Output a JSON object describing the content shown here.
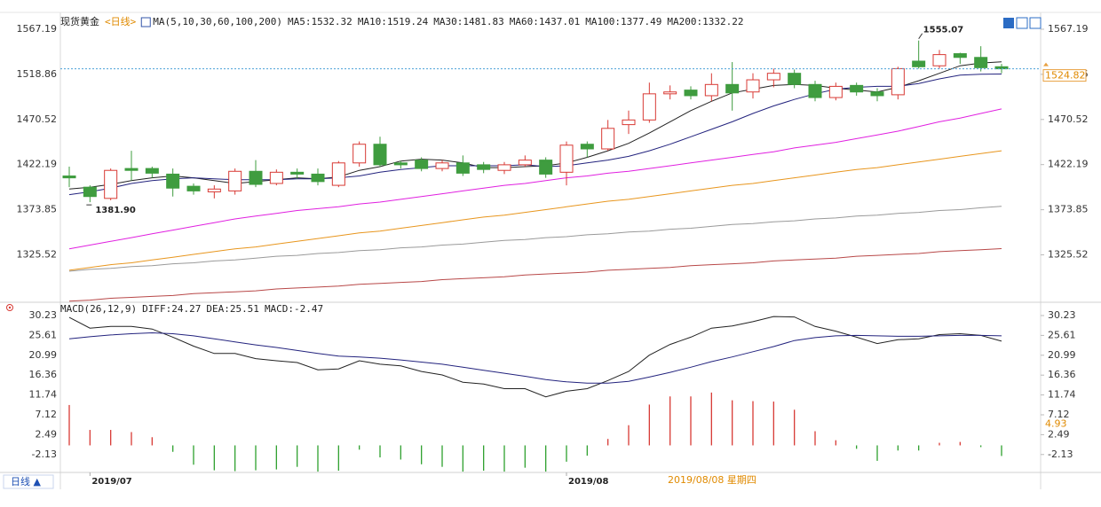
{
  "header": {
    "title": "现货黄金",
    "period": "<日线>",
    "ma_params": "MA(5,10,30,60,100,200)"
  },
  "chart_data": [
    {
      "type": "candlestick",
      "categories": [
        null,
        "2019/07",
        null,
        null,
        null,
        null,
        null,
        null,
        null,
        null,
        null,
        null,
        null,
        null,
        null,
        null,
        null,
        null,
        null,
        null,
        null,
        null,
        null,
        null,
        "2019/08",
        null,
        null,
        null,
        null,
        null,
        null,
        null,
        null,
        null,
        null,
        null,
        null,
        null,
        null,
        null,
        null,
        null,
        null,
        null,
        null,
        null
      ],
      "open": [
        1410,
        1398,
        1386,
        1418,
        1418,
        1412,
        1399,
        1393,
        1394,
        1415,
        1402,
        1414,
        1412,
        1400,
        1424,
        1444,
        1424,
        1427,
        1418,
        1424,
        1422,
        1416,
        1422,
        1427,
        1414,
        1444,
        1439,
        1465,
        1470,
        1498,
        1502,
        1496,
        1508,
        1500,
        1513,
        1520,
        1508,
        1494,
        1507,
        1500,
        1497,
        1533,
        1528,
        1541,
        1537,
        1527
      ],
      "high": [
        1420,
        1400,
        1418,
        1437,
        1420,
        1418,
        1402,
        1400,
        1418,
        1427,
        1417,
        1418,
        1418,
        1426,
        1447,
        1452,
        1426,
        1430,
        1427,
        1432,
        1425,
        1425,
        1432,
        1430,
        1447,
        1447,
        1470,
        1480,
        1510,
        1507,
        1506,
        1520,
        1532,
        1520,
        1525,
        1524,
        1512,
        1510,
        1510,
        1504,
        1527,
        1555.07,
        1545,
        1542,
        1549,
        1530
      ],
      "low": [
        1398,
        1381.9,
        1384,
        1405,
        1408,
        1388,
        1390,
        1386,
        1390,
        1398,
        1400,
        1407,
        1400,
        1398,
        1420,
        1420,
        1418,
        1415,
        1415,
        1410,
        1413,
        1412,
        1420,
        1408,
        1400,
        1430,
        1437,
        1455,
        1467,
        1492,
        1492,
        1490,
        1480,
        1493,
        1505,
        1504,
        1490,
        1491,
        1496,
        1490,
        1492,
        1525,
        1525,
        1530,
        1522,
        1520
      ],
      "close": [
        1408,
        1388,
        1416,
        1416,
        1413,
        1397,
        1394,
        1396,
        1415,
        1401,
        1414,
        1412,
        1404,
        1424,
        1444,
        1422,
        1422,
        1418,
        1424,
        1413,
        1417,
        1422,
        1427,
        1412,
        1443,
        1439,
        1461,
        1470,
        1498,
        1500,
        1496,
        1508,
        1499,
        1513,
        1520,
        1508,
        1494,
        1506,
        1500,
        1496,
        1525,
        1527,
        1540,
        1537,
        1526,
        1524.82
      ],
      "up_color": "#d83a34",
      "down_color": "#3f9c3f",
      "series": [
        {
          "label": "MA5:1532.32",
          "color": "#222222",
          "values": [
            1396,
            1398,
            1401,
            1405,
            1408,
            1410,
            1408,
            1405,
            1402,
            1404,
            1406,
            1408,
            1407,
            1409,
            1416,
            1420,
            1426,
            1428,
            1427,
            1424,
            1419,
            1419,
            1420,
            1421,
            1424,
            1430,
            1437,
            1445,
            1456,
            1468,
            1480,
            1490,
            1499,
            1503,
            1507,
            1508,
            1507,
            1504,
            1502,
            1500,
            1505,
            1512,
            1520,
            1528,
            1531,
            1532.32
          ]
        },
        {
          "label": "MA10:1519.24",
          "color": "#23237e",
          "values": [
            1390,
            1393,
            1397,
            1402,
            1405,
            1407,
            1408,
            1407,
            1406,
            1406,
            1406,
            1407,
            1407,
            1408,
            1410,
            1414,
            1417,
            1419,
            1421,
            1421,
            1421,
            1421,
            1422,
            1420,
            1421,
            1424,
            1427,
            1431,
            1437,
            1444,
            1452,
            1460,
            1468,
            1477,
            1485,
            1492,
            1498,
            1503,
            1505,
            1506,
            1506,
            1509,
            1514,
            1518,
            1519,
            1519.24
          ]
        },
        {
          "label": "MA30:1481.83",
          "color": "#e020e0",
          "values": [
            1332,
            1336,
            1340,
            1344,
            1348,
            1352,
            1356,
            1360,
            1364,
            1367,
            1370,
            1373,
            1375,
            1377,
            1380,
            1382,
            1385,
            1388,
            1391,
            1394,
            1397,
            1400,
            1402,
            1405,
            1408,
            1410,
            1413,
            1415,
            1418,
            1421,
            1424,
            1427,
            1430,
            1433,
            1436,
            1440,
            1443,
            1446,
            1450,
            1454,
            1458,
            1463,
            1468,
            1472,
            1477,
            1481.83
          ]
        },
        {
          "label": "MA60:1437.01",
          "color": "#e8961e",
          "values": [
            1309,
            1312,
            1315,
            1317,
            1320,
            1323,
            1326,
            1329,
            1332,
            1334,
            1337,
            1340,
            1343,
            1346,
            1349,
            1351,
            1354,
            1357,
            1360,
            1363,
            1366,
            1368,
            1371,
            1374,
            1377,
            1380,
            1383,
            1385,
            1388,
            1391,
            1394,
            1397,
            1400,
            1402,
            1405,
            1408,
            1411,
            1414,
            1417,
            1419,
            1422,
            1425,
            1428,
            1431,
            1434,
            1437.01
          ]
        },
        {
          "label": "MA100:1377.49",
          "color": "#9a9a9a",
          "values": [
            1308,
            1310,
            1311,
            1313,
            1314,
            1316,
            1317,
            1319,
            1320,
            1322,
            1324,
            1325,
            1327,
            1328,
            1330,
            1331,
            1333,
            1334,
            1336,
            1337,
            1339,
            1341,
            1342,
            1344,
            1345,
            1347,
            1348,
            1350,
            1351,
            1353,
            1354,
            1356,
            1358,
            1359,
            1361,
            1362,
            1364,
            1365,
            1367,
            1368,
            1370,
            1371,
            1373,
            1374,
            1376,
            1377.49
          ]
        },
        {
          "label": "MA200:1332.22",
          "color": "#b84848",
          "values": [
            1276,
            1277,
            1279,
            1280,
            1281,
            1282,
            1284,
            1285,
            1286,
            1287,
            1289,
            1290,
            1291,
            1292,
            1294,
            1295,
            1296,
            1297,
            1299,
            1300,
            1301,
            1302,
            1304,
            1305,
            1306,
            1307,
            1309,
            1310,
            1311,
            1312,
            1314,
            1315,
            1316,
            1317,
            1319,
            1320,
            1321,
            1322,
            1324,
            1325,
            1326,
            1327,
            1329,
            1330,
            1331,
            1332.22
          ]
        }
      ],
      "annotations": [
        {
          "value": 1381.9,
          "label": "1381.90",
          "color": "#3a9a3a"
        },
        {
          "value": 1555.07,
          "label": "1555.07",
          "color": "#d83a34"
        }
      ],
      "last_price": 1524.82,
      "ylim": [
        1275.7,
        1581.4
      ],
      "yticks": [
        1567.19,
        1518.86,
        1470.52,
        1422.19,
        1373.85,
        1325.52
      ],
      "grid": false
    },
    {
      "type": "macd",
      "title": "MACD(26,12,9)",
      "histogram_label": "MACD:-2.47",
      "histogram_label_color": "#e020e0",
      "values": [
        9.4,
        3.6,
        3.6,
        3.1,
        1.9,
        -1.5,
        -4.5,
        -5.8,
        -6.0,
        -5.8,
        -5.6,
        -5.0,
        -6.1,
        -5.9,
        -1.0,
        -2.8,
        -3.3,
        -4.4,
        -5.0,
        -6.1,
        -5.9,
        -6.1,
        -5.2,
        -6.1,
        -3.8,
        -2.4,
        1.5,
        4.7,
        9.5,
        11.4,
        11.4,
        12.3,
        10.5,
        10.3,
        10.2,
        8.3,
        3.3,
        1.2,
        -0.8,
        -3.6,
        -1.2,
        -1.2,
        0.6,
        0.8,
        -0.4,
        -2.47
      ],
      "up_color": "#d83a34",
      "down_color": "#2ea02e",
      "series": [
        {
          "label": "DIFF:24.27",
          "color": "#222222",
          "values": [
            29.8,
            27.3,
            27.7,
            27.7,
            27.1,
            25.2,
            23.1,
            21.4,
            21.4,
            20.2,
            19.7,
            19.3,
            17.6,
            17.8,
            19.7,
            18.9,
            18.5,
            17.2,
            16.4,
            14.7,
            14.3,
            13.2,
            13.2,
            11.3,
            12.6,
            13.2,
            15.1,
            17.2,
            21.0,
            23.5,
            25.2,
            27.3,
            27.8,
            28.8,
            30.0,
            29.9,
            27.7,
            26.6,
            25.2,
            23.7,
            24.6,
            24.8,
            25.8,
            26.0,
            25.6,
            24.27
          ]
        },
        {
          "label": "DEA:25.51",
          "color": "#23237e",
          "values": [
            24.8,
            25.3,
            25.7,
            26.0,
            26.2,
            26.0,
            25.5,
            24.8,
            24.1,
            23.4,
            22.8,
            22.1,
            21.4,
            20.8,
            20.6,
            20.3,
            19.9,
            19.4,
            18.9,
            18.2,
            17.5,
            16.8,
            16.1,
            15.3,
            14.8,
            14.5,
            14.5,
            14.9,
            15.9,
            17.0,
            18.2,
            19.5,
            20.6,
            21.8,
            23.0,
            24.4,
            25.1,
            25.5,
            25.6,
            25.5,
            25.4,
            25.4,
            25.5,
            25.6,
            25.6,
            25.51
          ]
        }
      ],
      "crosshair_value": 4.93,
      "ylim": [
        -6.3,
        32.5
      ],
      "yticks": [
        30.23,
        25.61,
        20.99,
        16.36,
        11.74,
        7.12,
        2.49,
        -2.13
      ],
      "grid": false
    }
  ],
  "footer": {
    "period_button": "日线 ▲",
    "crosshair_date": "2019/08/08 星期四"
  }
}
